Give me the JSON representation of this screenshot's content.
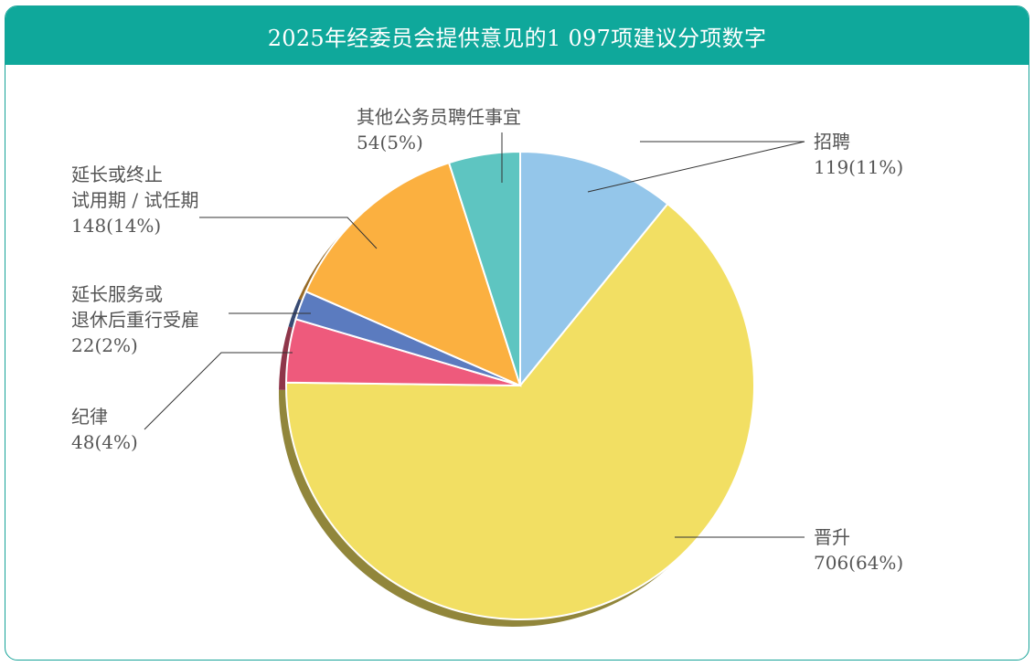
{
  "title": "2025年经委员会提供意见的1 097项建议分项数字",
  "chart_data": {
    "type": "pie",
    "title": "2025年经委员会提供意见的1 097项建议分项数字",
    "total": 1097,
    "slices": [
      {
        "name": "招聘",
        "label_lines": [
          "招聘"
        ],
        "value": 119,
        "percent": "11%",
        "value_label": "119(11%)",
        "color": "#94c6ea"
      },
      {
        "name": "晋升",
        "label_lines": [
          "晋升"
        ],
        "value": 706,
        "percent": "64%",
        "value_label": "706(64%)",
        "color": "#f2df63"
      },
      {
        "name": "纪律",
        "label_lines": [
          "纪律"
        ],
        "value": 48,
        "percent": "4%",
        "value_label": "48(4%)",
        "color": "#ee5a7c"
      },
      {
        "name": "延长服务或退休后重行受雇",
        "label_lines": [
          "延长服务或",
          "退休后重行受雇"
        ],
        "value": 22,
        "percent": "2%",
        "value_label": "22(2%)",
        "color": "#5b7bbf"
      },
      {
        "name": "延长或终止试用期 / 试任期",
        "label_lines": [
          "延长或终止",
          "试用期 / 试任期"
        ],
        "value": 148,
        "percent": "14%",
        "value_label": "148(14%)",
        "color": "#fbb040"
      },
      {
        "name": "其他公务员聘任事宜",
        "label_lines": [
          "其他公务员聘任事宜"
        ],
        "value": 54,
        "percent": "5%",
        "value_label": "54(5%)",
        "color": "#5ec5c1"
      }
    ]
  }
}
